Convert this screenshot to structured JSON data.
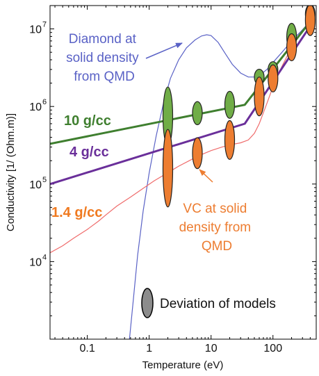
{
  "chart_data": {
    "type": "line",
    "xlabel": "Temperature (eV)",
    "ylabel": "Conductivity [1/ (Ohm.m)]",
    "xscale": "log",
    "yscale": "log",
    "xlim": [
      0.025,
      500
    ],
    "ylim": [
      1000,
      20000000
    ],
    "x_ticks": [
      0.1,
      1,
      10,
      100
    ],
    "x_tick_labels": [
      "0.1",
      "1",
      "10",
      "100"
    ],
    "y_ticks": [
      10000,
      100000,
      1000000,
      10000000
    ],
    "y_tick_labels": [
      "10",
      "10",
      "10",
      "10"
    ],
    "y_tick_exponents": [
      "4",
      "5",
      "6",
      "7"
    ],
    "colors": {
      "density_10": "#3f7f2f",
      "density_4": "#6a2f9a",
      "density_1_4": "#f07a20",
      "qmd_diamond": "#5a62c6",
      "qmd_vc": "#ef6b6b",
      "marker_green": "#70ad47",
      "marker_orange": "#ed7d31",
      "marker_gray": "#8c8c8c"
    },
    "series": [
      {
        "name": "10 g/cc",
        "style": "model-line",
        "x": [
          0.025,
          35,
          450
        ],
        "y": [
          330000,
          1050000,
          14000000
        ]
      },
      {
        "name": "4 g/cc",
        "style": "model-line",
        "x": [
          0.025,
          35,
          450
        ],
        "y": [
          100000,
          600000,
          12500000
        ]
      },
      {
        "name": "Diamond at solid density from QMD",
        "style": "qmd-curve",
        "x": [
          0.46,
          0.55,
          0.65,
          0.8,
          1.0,
          1.3,
          1.7,
          2.2,
          3,
          4,
          5.5,
          7,
          8.5,
          10,
          13,
          17,
          22,
          30,
          40,
          50,
          60,
          80,
          100,
          140,
          200,
          280,
          380,
          450
        ],
        "y": [
          700,
          3000,
          12000,
          45000,
          140000,
          420000,
          1100000,
          2300000,
          4000000,
          5700000,
          7200000,
          8100000,
          8400000,
          8200000,
          6700000,
          4800000,
          3500000,
          2700000,
          2400000,
          2400000,
          2500000,
          3000000,
          3700000,
          5000000,
          7000000,
          9200000,
          12000000,
          14500000
        ]
      },
      {
        "name": "VC at solid density from QMD",
        "style": "qmd-curve",
        "x": [
          0.025,
          0.04,
          0.06,
          0.1,
          0.15,
          0.2,
          0.3,
          0.5,
          0.8,
          1.2,
          2,
          3,
          5,
          7,
          10,
          15,
          20,
          30,
          40,
          50,
          60,
          80,
          100,
          140,
          200,
          280,
          380,
          450
        ],
        "y": [
          13000,
          16000,
          20000,
          26000,
          33000,
          40000,
          52000,
          68000,
          88000,
          110000,
          140000,
          170000,
          210000,
          240000,
          270000,
          300000,
          320000,
          340000,
          370000,
          450000,
          600000,
          1100000,
          1800000,
          3300000,
          5800000,
          8800000,
          12000000,
          14000000
        ]
      }
    ],
    "markers": [
      {
        "group": "10 g/cc",
        "x": 2,
        "y": 750000,
        "spread": 0.15
      },
      {
        "group": "10 g/cc",
        "x": 6,
        "y": 820000,
        "spread": 0.06
      },
      {
        "group": "10 g/cc",
        "x": 20,
        "y": 1050000,
        "spread": 0.07
      },
      {
        "group": "10 g/cc",
        "x": 60,
        "y": 2400000,
        "spread": 0.04
      },
      {
        "group": "10 g/cc",
        "x": 100,
        "y": 3000000,
        "spread": 0.04
      },
      {
        "group": "10 g/cc",
        "x": 200,
        "y": 7900000,
        "spread": 0.07
      },
      {
        "group": "10 g/cc",
        "x": 400,
        "y": 15500000,
        "spread": 0.05
      },
      {
        "group": "1.4 g/cc",
        "x": 2,
        "y": 160000,
        "spread": 0.2
      },
      {
        "group": "1.4 g/cc",
        "x": 6,
        "y": 250000,
        "spread": 0.08
      },
      {
        "group": "1.4 g/cc",
        "x": 20,
        "y": 370000,
        "spread": 0.1
      },
      {
        "group": "1.4 g/cc",
        "x": 60,
        "y": 1350000,
        "spread": 0.1
      },
      {
        "group": "1.4 g/cc",
        "x": 100,
        "y": 2300000,
        "spread": 0.07
      },
      {
        "group": "1.4 g/cc",
        "x": 200,
        "y": 5800000,
        "spread": 0.07
      },
      {
        "group": "1.4 g/cc",
        "x": 400,
        "y": 13000000,
        "spread": 0.08
      }
    ],
    "annotations": {
      "diamond_label": [
        "Diamond at",
        "solid density",
        "from QMD"
      ],
      "vc_label": [
        "VC at solid",
        "density from",
        "QMD"
      ],
      "label_10": "10 g/cc",
      "label_4": "4 g/cc",
      "label_1_4": "1.4 g/cc",
      "legend_deviation": "Deviation of models"
    },
    "grid": false,
    "legend": "bottom-right"
  }
}
